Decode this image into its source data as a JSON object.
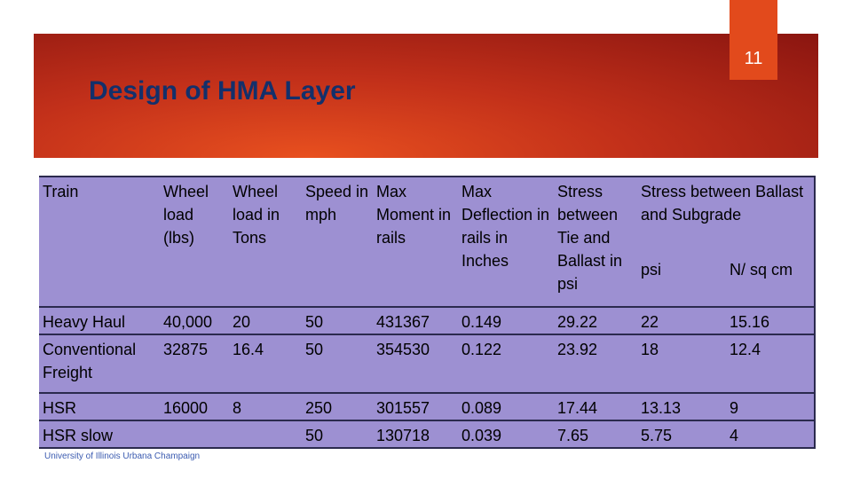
{
  "page_number": "11",
  "title": "Design of HMA Layer",
  "table": {
    "header": [
      "Train",
      "Wheel load (lbs)",
      "Wheel load in Tons",
      "Speed in mph",
      "Max Moment in rails",
      "Max Deflection in rails in Inches",
      "Stress between Tie and Ballast in psi",
      "Stress between Ballast and Subgrade"
    ],
    "subheader": [
      "psi",
      "N/ sq cm"
    ],
    "rows": [
      [
        "Heavy Haul",
        "40,000",
        "20",
        "50",
        "431367",
        "0.149",
        "29.22",
        "22",
        "15.16"
      ],
      [
        "Conventional Freight",
        "32875",
        "16.4",
        "50",
        "354530",
        "0.122",
        "23.92",
        "18",
        "12.4"
      ],
      [
        "HSR",
        "16000",
        "8",
        "250",
        "301557",
        "0.089",
        "17.44",
        "13.13",
        "9"
      ],
      [
        "HSR slow",
        null,
        null,
        "50",
        "130718",
        "0.039",
        "7.65",
        "5.75",
        "4"
      ]
    ]
  },
  "footer": "University of Illinois Urbana Champaign"
}
